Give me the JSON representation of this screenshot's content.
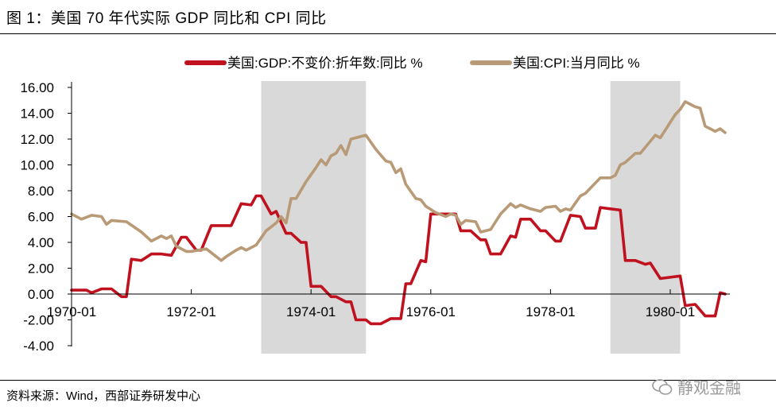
{
  "header": {
    "title": "图 1：美国 70 年代实际 GDP 同比和 CPI 同比"
  },
  "footer": {
    "source": "资料来源：Wind，西部证券研发中心",
    "watermark": "静观金融",
    "watermark_icon": "wechat-icon"
  },
  "colors": {
    "gdp": "#c0111f",
    "cpi": "#b99a76",
    "shade": "#d9d9d9"
  },
  "chart_data": {
    "type": "line",
    "title": "",
    "xlabel": "",
    "ylabel": "",
    "ylim": [
      -4,
      16
    ],
    "yticks": [
      "16.00",
      "14.00",
      "12.00",
      "10.00",
      "8.00",
      "6.00",
      "4.00",
      "2.00",
      "0.00",
      "-2.00",
      "-4.00"
    ],
    "ytick_values": [
      16,
      14,
      12,
      10,
      8,
      6,
      4,
      2,
      0,
      -2,
      -4
    ],
    "xlim": [
      "1970-01",
      "1980-12"
    ],
    "xticks": [
      "1970-01",
      "1972-01",
      "1974-01",
      "1976-01",
      "1978-01",
      "1980-01"
    ],
    "legend_position": "top",
    "grid": false,
    "shaded_periods": [
      [
        "1973-03",
        "1974-12"
      ],
      [
        "1979-01",
        "1980-03"
      ]
    ],
    "series": [
      {
        "name": "美国:GDP:不变价:折年数:同比 %",
        "color": "#c0111f",
        "points": [
          [
            "1970-01",
            0.3
          ],
          [
            "1970-04",
            0.3
          ],
          [
            "1970-05",
            0.1
          ],
          [
            "1970-07",
            0.4
          ],
          [
            "1970-09",
            0.4
          ],
          [
            "1970-11",
            -0.2
          ],
          [
            "1970-12",
            -0.2
          ],
          [
            "1971-01",
            2.7
          ],
          [
            "1971-03",
            2.6
          ],
          [
            "1971-05",
            3.1
          ],
          [
            "1971-07",
            3.1
          ],
          [
            "1971-09",
            3.0
          ],
          [
            "1971-11",
            4.4
          ],
          [
            "1971-12",
            4.4
          ],
          [
            "1972-02",
            3.4
          ],
          [
            "1972-03",
            3.4
          ],
          [
            "1972-05",
            5.3
          ],
          [
            "1972-07",
            5.3
          ],
          [
            "1972-09",
            5.3
          ],
          [
            "1972-11",
            7.0
          ],
          [
            "1973-01",
            6.9
          ],
          [
            "1973-02",
            7.6
          ],
          [
            "1973-03",
            7.6
          ],
          [
            "1973-05",
            6.2
          ],
          [
            "1973-06",
            6.4
          ],
          [
            "1973-08",
            4.7
          ],
          [
            "1973-09",
            4.7
          ],
          [
            "1973-11",
            4.0
          ],
          [
            "1973-12",
            4.0
          ],
          [
            "1974-01",
            0.6
          ],
          [
            "1974-03",
            0.6
          ],
          [
            "1974-05",
            -0.2
          ],
          [
            "1974-06",
            -0.2
          ],
          [
            "1974-08",
            -0.6
          ],
          [
            "1974-09",
            -0.6
          ],
          [
            "1974-10",
            -2.0
          ],
          [
            "1974-12",
            -2.0
          ],
          [
            "1975-01",
            -2.3
          ],
          [
            "1975-03",
            -2.3
          ],
          [
            "1975-05",
            -1.9
          ],
          [
            "1975-07",
            -1.9
          ],
          [
            "1975-08",
            0.8
          ],
          [
            "1975-09",
            0.8
          ],
          [
            "1975-11",
            2.6
          ],
          [
            "1975-12",
            2.5
          ],
          [
            "1976-01",
            6.2
          ],
          [
            "1976-06",
            6.2
          ],
          [
            "1976-07",
            4.9
          ],
          [
            "1976-09",
            4.9
          ],
          [
            "1976-11",
            4.2
          ],
          [
            "1976-12",
            4.2
          ],
          [
            "1977-01",
            3.1
          ],
          [
            "1977-03",
            3.1
          ],
          [
            "1977-05",
            4.5
          ],
          [
            "1977-06",
            4.4
          ],
          [
            "1977-07",
            5.8
          ],
          [
            "1977-09",
            5.8
          ],
          [
            "1977-11",
            4.9
          ],
          [
            "1977-12",
            4.9
          ],
          [
            "1978-02",
            4.1
          ],
          [
            "1978-03",
            4.1
          ],
          [
            "1978-05",
            6.1
          ],
          [
            "1978-07",
            6.0
          ],
          [
            "1978-08",
            5.1
          ],
          [
            "1978-10",
            5.1
          ],
          [
            "1978-11",
            6.7
          ],
          [
            "1979-01",
            6.6
          ],
          [
            "1979-03",
            6.5
          ],
          [
            "1979-04",
            2.6
          ],
          [
            "1979-06",
            2.6
          ],
          [
            "1979-08",
            2.3
          ],
          [
            "1979-09",
            2.4
          ],
          [
            "1979-11",
            1.2
          ],
          [
            "1980-01",
            1.3
          ],
          [
            "1980-03",
            1.4
          ],
          [
            "1980-04",
            -0.9
          ],
          [
            "1980-06",
            -0.8
          ],
          [
            "1980-08",
            -1.7
          ],
          [
            "1980-10",
            -1.7
          ],
          [
            "1980-11",
            0.1
          ],
          [
            "1980-12",
            0.0
          ]
        ]
      },
      {
        "name": "美国:CPI:当月同比 %",
        "color": "#b99a76",
        "points": [
          [
            "1970-01",
            6.2
          ],
          [
            "1970-03",
            5.8
          ],
          [
            "1970-05",
            6.1
          ],
          [
            "1970-07",
            6.0
          ],
          [
            "1970-08",
            5.4
          ],
          [
            "1970-09",
            5.7
          ],
          [
            "1970-12",
            5.6
          ],
          [
            "1971-03",
            4.8
          ],
          [
            "1971-05",
            4.1
          ],
          [
            "1971-07",
            4.5
          ],
          [
            "1971-08",
            4.3
          ],
          [
            "1971-09",
            4.5
          ],
          [
            "1971-10",
            3.7
          ],
          [
            "1971-12",
            3.3
          ],
          [
            "1972-01",
            3.3
          ],
          [
            "1972-04",
            3.5
          ],
          [
            "1972-07",
            2.6
          ],
          [
            "1972-08",
            2.9
          ],
          [
            "1972-10",
            3.4
          ],
          [
            "1972-11",
            3.6
          ],
          [
            "1972-12",
            3.4
          ],
          [
            "1973-02",
            3.8
          ],
          [
            "1973-04",
            4.9
          ],
          [
            "1973-06",
            5.5
          ],
          [
            "1973-07",
            6.0
          ],
          [
            "1973-08",
            5.5
          ],
          [
            "1973-09",
            7.4
          ],
          [
            "1973-10",
            7.4
          ],
          [
            "1973-12",
            8.7
          ],
          [
            "1974-02",
            9.8
          ],
          [
            "1974-03",
            10.4
          ],
          [
            "1974-04",
            10.0
          ],
          [
            "1974-05",
            10.7
          ],
          [
            "1974-06",
            10.9
          ],
          [
            "1974-07",
            11.5
          ],
          [
            "1974-08",
            10.8
          ],
          [
            "1974-09",
            12.0
          ],
          [
            "1974-12",
            12.3
          ],
          [
            "1975-02",
            11.2
          ],
          [
            "1975-04",
            10.3
          ],
          [
            "1975-05",
            10.2
          ],
          [
            "1975-06",
            9.4
          ],
          [
            "1975-07",
            9.7
          ],
          [
            "1975-08",
            8.5
          ],
          [
            "1975-10",
            7.4
          ],
          [
            "1975-11",
            7.3
          ],
          [
            "1975-12",
            6.8
          ],
          [
            "1976-02",
            6.3
          ],
          [
            "1976-04",
            6.0
          ],
          [
            "1976-05",
            6.2
          ],
          [
            "1976-06",
            6.1
          ],
          [
            "1976-07",
            5.4
          ],
          [
            "1976-08",
            5.7
          ],
          [
            "1976-10",
            5.6
          ],
          [
            "1976-11",
            4.8
          ],
          [
            "1977-01",
            5.0
          ],
          [
            "1977-03",
            6.2
          ],
          [
            "1977-05",
            7.0
          ],
          [
            "1977-06",
            6.7
          ],
          [
            "1977-07",
            6.9
          ],
          [
            "1977-09",
            6.6
          ],
          [
            "1977-11",
            6.4
          ],
          [
            "1977-12",
            6.7
          ],
          [
            "1978-02",
            6.8
          ],
          [
            "1978-03",
            6.4
          ],
          [
            "1978-04",
            6.6
          ],
          [
            "1978-05",
            6.5
          ],
          [
            "1978-07",
            7.6
          ],
          [
            "1978-08",
            7.8
          ],
          [
            "1978-11",
            9.0
          ],
          [
            "1979-01",
            9.0
          ],
          [
            "1979-02",
            9.2
          ],
          [
            "1979-03",
            10.0
          ],
          [
            "1979-04",
            10.2
          ],
          [
            "1979-06",
            10.9
          ],
          [
            "1979-07",
            10.9
          ],
          [
            "1979-10",
            12.3
          ],
          [
            "1979-11",
            12.1
          ],
          [
            "1980-02",
            13.9
          ],
          [
            "1980-03",
            14.3
          ],
          [
            "1980-04",
            14.9
          ],
          [
            "1980-06",
            14.5
          ],
          [
            "1980-07",
            14.4
          ],
          [
            "1980-08",
            13.0
          ],
          [
            "1980-09",
            12.8
          ],
          [
            "1980-10",
            12.6
          ],
          [
            "1980-11",
            12.8
          ],
          [
            "1980-12",
            12.5
          ]
        ]
      }
    ]
  }
}
